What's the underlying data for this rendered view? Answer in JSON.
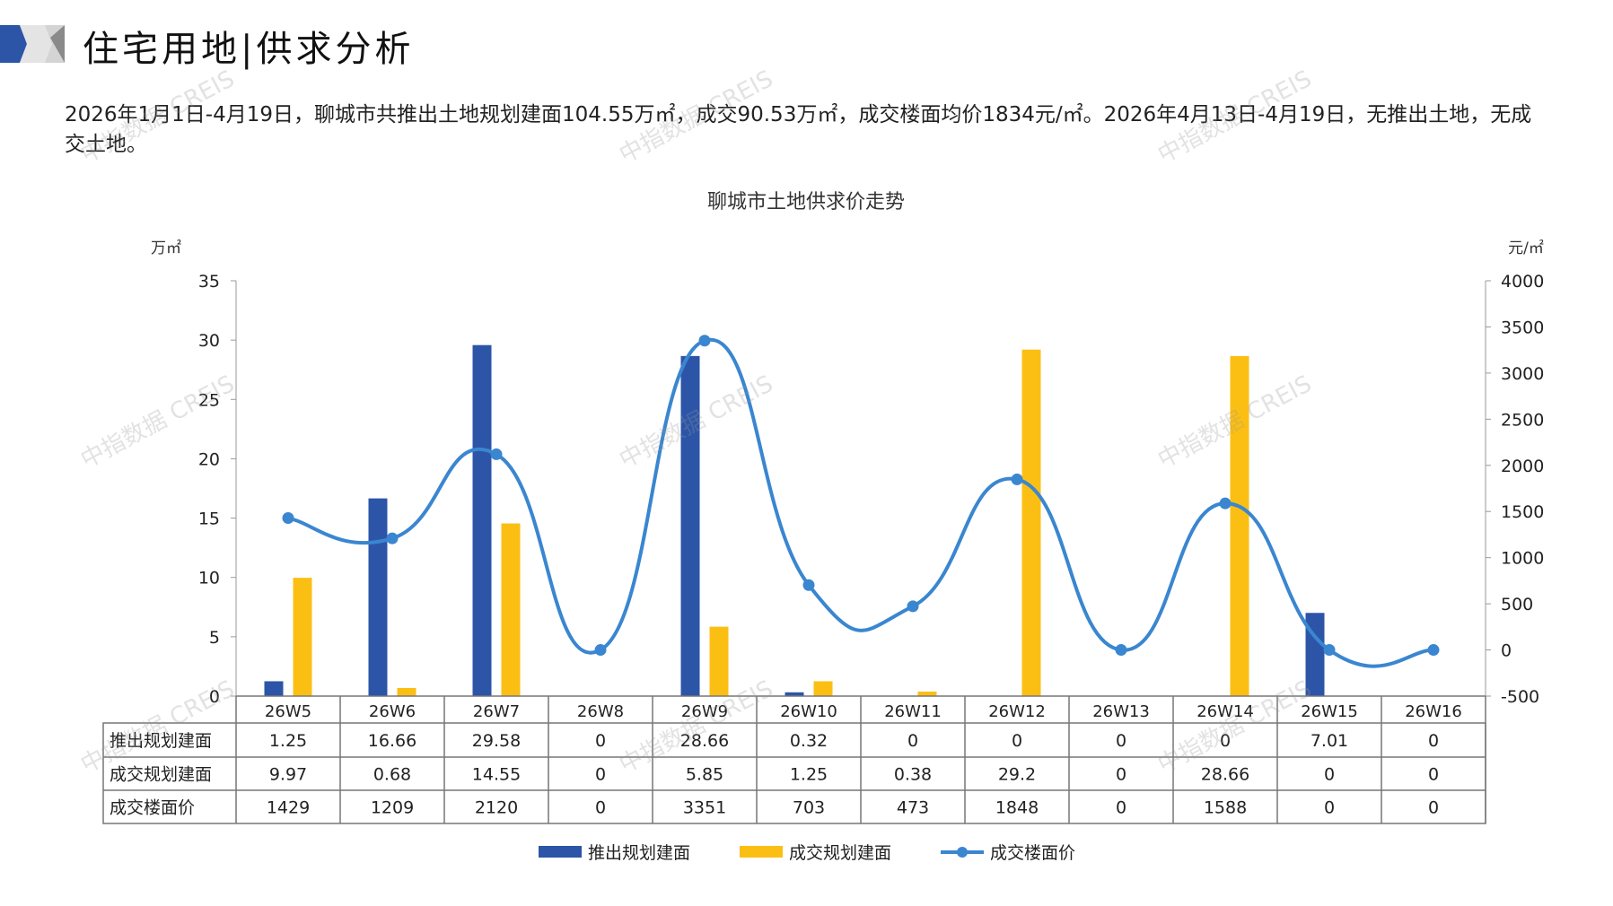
{
  "header": {
    "title": "住宅用地|供求分析",
    "paragraph": "2026年1月1日-4月19日，聊城市共推出土地规划建面104.55万㎡，成交90.53万㎡，成交楼面均价1834元/㎡。2026年4月13日-4月19日，无推出土地，无成交土地。"
  },
  "watermark": "中指数据 CREIS",
  "chart_data": {
    "type": "bar+line",
    "title": "聊城市土地供求价走势",
    "y_left_unit": "万㎡",
    "y_right_unit": "元/㎡",
    "y_left_range": [
      0,
      35
    ],
    "y_left_ticks": [
      0,
      5,
      10,
      15,
      20,
      25,
      30,
      35
    ],
    "y_right_range": [
      -500,
      4000
    ],
    "y_right_ticks": [
      -500,
      0,
      500,
      1000,
      1500,
      2000,
      2500,
      3000,
      3500,
      4000
    ],
    "grid": false,
    "legend_position": "bottom",
    "categories": [
      "26W5",
      "26W6",
      "26W7",
      "26W8",
      "26W9",
      "26W10",
      "26W11",
      "26W12",
      "26W13",
      "26W14",
      "26W15",
      "26W16"
    ],
    "series": [
      {
        "name": "推出规划建面",
        "type": "bar",
        "axis": "left",
        "color": "#2c55a8",
        "values": [
          "1.25",
          "16.66",
          "29.58",
          "0",
          "28.66",
          "0.32",
          "0",
          "0",
          "0",
          "0",
          "7.01",
          "0"
        ]
      },
      {
        "name": "成交规划建面",
        "type": "bar",
        "axis": "left",
        "color": "#fbbf14",
        "values": [
          "9.97",
          "0.68",
          "14.55",
          "0",
          "5.85",
          "1.25",
          "0.38",
          "29.2",
          "0",
          "28.66",
          "0",
          "0"
        ]
      },
      {
        "name": "成交楼面价",
        "type": "line",
        "axis": "right",
        "color": "#3a86d0",
        "smooth": true,
        "values": [
          "1429",
          "1209",
          "2120",
          "0",
          "3351",
          "703",
          "473",
          "1848",
          "0",
          "1588",
          "0",
          "0"
        ]
      }
    ]
  }
}
